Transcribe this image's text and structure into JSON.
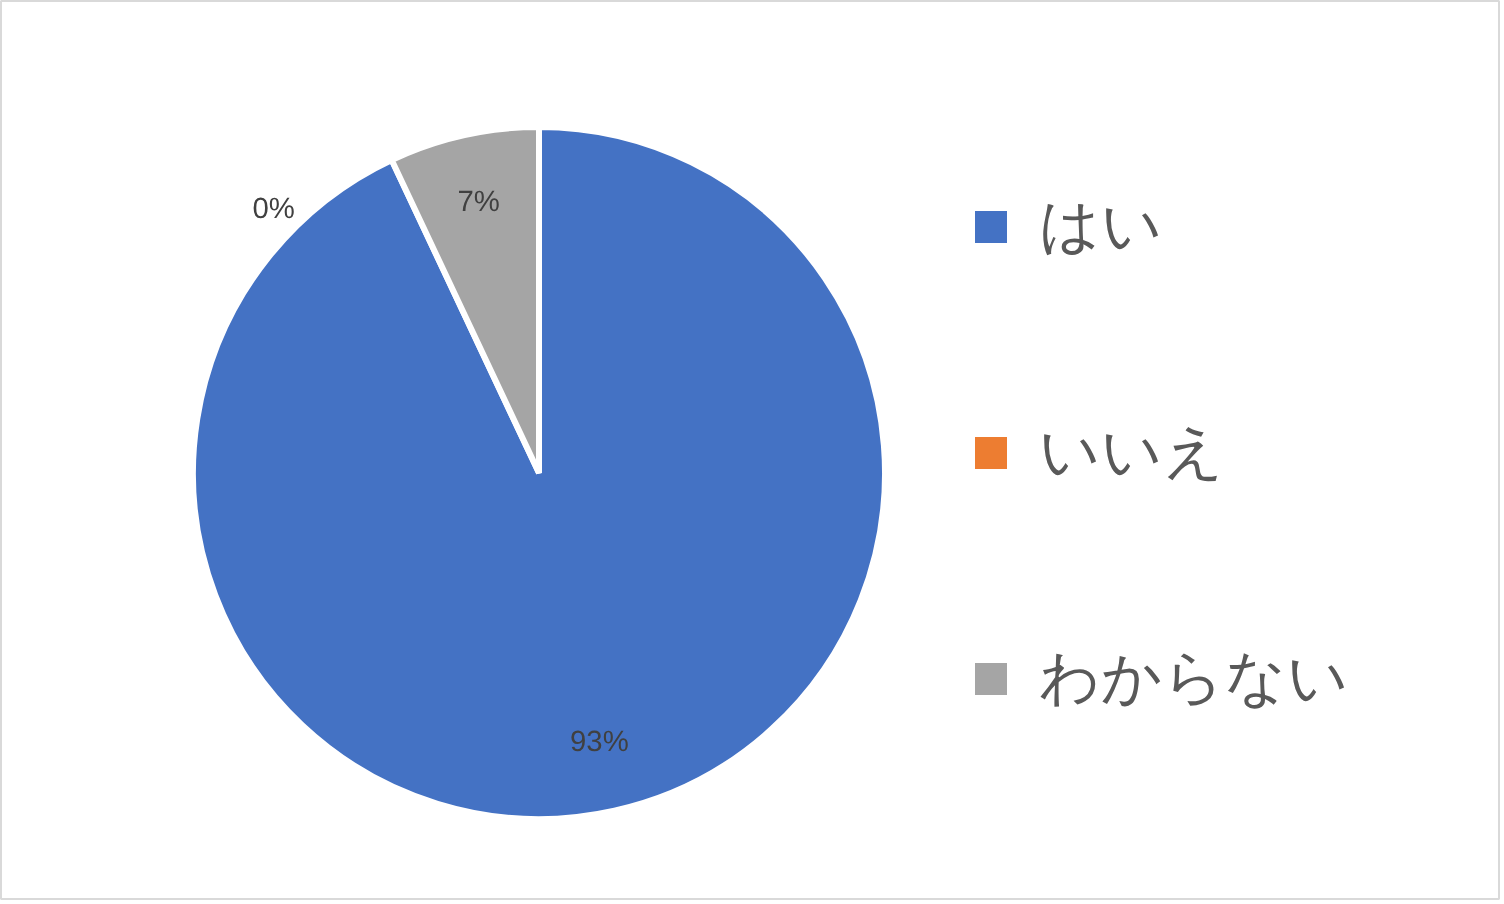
{
  "chart_data": {
    "type": "pie",
    "categories": [
      "はい",
      "いいえ",
      "わからない"
    ],
    "values": [
      93,
      0,
      7
    ],
    "colors": [
      "#4472c4",
      "#ed7d31",
      "#a5a5a5"
    ],
    "value_labels": [
      "93%",
      "0%",
      "7%"
    ],
    "legend": "right"
  }
}
